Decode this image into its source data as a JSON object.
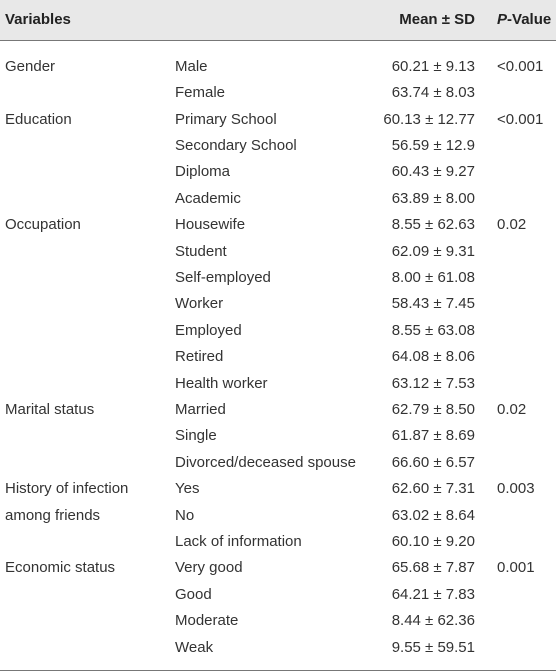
{
  "header": {
    "variables": "Variables",
    "mean": "Mean ± SD",
    "p_value": "P-Value"
  },
  "groups": [
    {
      "variable": "Gender",
      "p_value": "<0.001",
      "rows": [
        {
          "level": "Male",
          "mean": "60.21 ± 9.13"
        },
        {
          "level": "Female",
          "mean": "63.74 ± 8.03"
        }
      ]
    },
    {
      "variable": "Education",
      "p_value": "<0.001",
      "rows": [
        {
          "level": "Primary School",
          "mean": "60.13 ± 12.77"
        },
        {
          "level": "Secondary School",
          "mean": "56.59 ± 12.9"
        },
        {
          "level": "Diploma",
          "mean": "60.43 ± 9.27"
        },
        {
          "level": "Academic",
          "mean": "63.89 ± 8.00"
        }
      ]
    },
    {
      "variable": "Occupation",
      "p_value": "0.02",
      "rows": [
        {
          "level": "Housewife",
          "mean": "8.55 ± 62.63"
        },
        {
          "level": "Student",
          "mean": "62.09 ± 9.31"
        },
        {
          "level": "Self-employed",
          "mean": "8.00 ± 61.08"
        },
        {
          "level": "Worker",
          "mean": "58.43 ± 7.45"
        },
        {
          "level": "Employed",
          "mean": "8.55 ± 63.08"
        },
        {
          "level": "Retired",
          "mean": "64.08 ± 8.06"
        },
        {
          "level": "Health worker",
          "mean": "63.12 ± 7.53"
        }
      ]
    },
    {
      "variable": "Marital status",
      "p_value": "0.02",
      "rows": [
        {
          "level": "Married",
          "mean": "62.79 ± 8.50"
        },
        {
          "level": "Single",
          "mean": "61.87 ± 8.69"
        },
        {
          "level": "Divorced/deceased spouse",
          "mean": "66.60 ± 6.57"
        }
      ]
    },
    {
      "variable": "History of infection among friends",
      "p_value": "0.003",
      "rows": [
        {
          "level": "Yes",
          "mean": "62.60 ± 7.31"
        },
        {
          "level": "No",
          "mean": "63.02 ± 8.64"
        },
        {
          "level": "Lack of information",
          "mean": "60.10 ± 9.20"
        }
      ]
    },
    {
      "variable": "Economic status",
      "p_value": "0.001",
      "rows": [
        {
          "level": "Very good",
          "mean": "65.68 ± 7.87"
        },
        {
          "level": "Good",
          "mean": "64.21 ± 7.83"
        },
        {
          "level": "Moderate",
          "mean": "8.44 ± 62.36"
        },
        {
          "level": "Weak",
          "mean": "9.55 ± 59.51"
        }
      ]
    }
  ]
}
